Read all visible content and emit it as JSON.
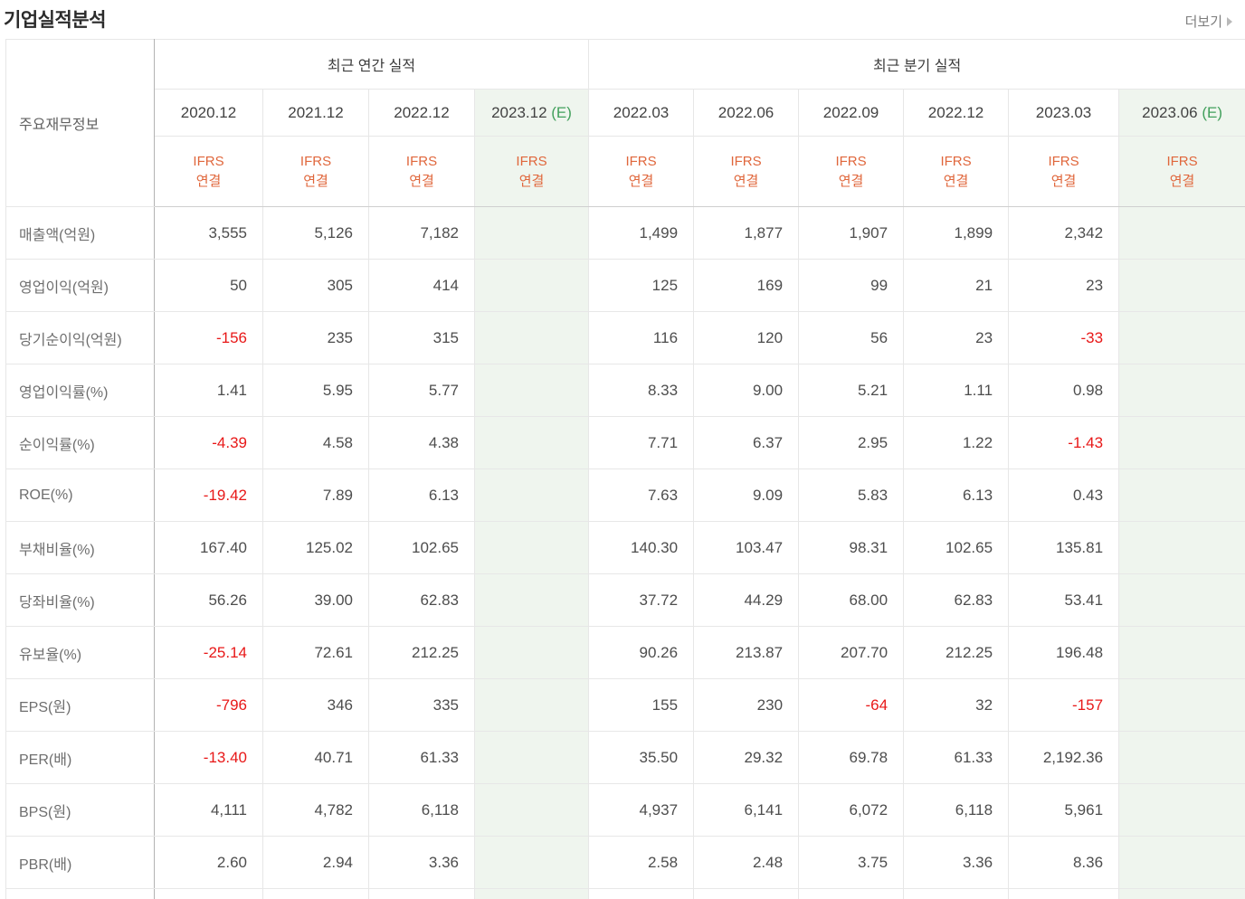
{
  "header": {
    "title": "기업실적분석",
    "more_label": "더보기"
  },
  "table": {
    "corner_label": "주요재무정보",
    "groups": [
      {
        "label": "최근 연간 실적",
        "span": 4
      },
      {
        "label": "최근 분기 실적",
        "span": 6
      }
    ],
    "estimate_suffix": "(E)",
    "ifrs_line1": "IFRS",
    "ifrs_line2": "연결",
    "columns": [
      {
        "period": "2020.12",
        "estimate": false
      },
      {
        "period": "2021.12",
        "estimate": false
      },
      {
        "period": "2022.12",
        "estimate": false
      },
      {
        "period": "2023.12",
        "estimate": true
      },
      {
        "period": "2022.03",
        "estimate": false
      },
      {
        "period": "2022.06",
        "estimate": false
      },
      {
        "period": "2022.09",
        "estimate": false
      },
      {
        "period": "2022.12",
        "estimate": false
      },
      {
        "period": "2023.03",
        "estimate": false
      },
      {
        "period": "2023.06",
        "estimate": true
      }
    ],
    "rows": [
      {
        "label": "매출액(억원)",
        "values": [
          "3,555",
          "5,126",
          "7,182",
          "",
          "1,499",
          "1,877",
          "1,907",
          "1,899",
          "2,342",
          ""
        ]
      },
      {
        "label": "영업이익(억원)",
        "values": [
          "50",
          "305",
          "414",
          "",
          "125",
          "169",
          "99",
          "21",
          "23",
          ""
        ]
      },
      {
        "label": "당기순이익(억원)",
        "values": [
          "-156",
          "235",
          "315",
          "",
          "116",
          "120",
          "56",
          "23",
          "-33",
          ""
        ]
      },
      {
        "label": "영업이익률(%)",
        "values": [
          "1.41",
          "5.95",
          "5.77",
          "",
          "8.33",
          "9.00",
          "5.21",
          "1.11",
          "0.98",
          ""
        ]
      },
      {
        "label": "순이익률(%)",
        "values": [
          "-4.39",
          "4.58",
          "4.38",
          "",
          "7.71",
          "6.37",
          "2.95",
          "1.22",
          "-1.43",
          ""
        ]
      },
      {
        "label": "ROE(%)",
        "values": [
          "-19.42",
          "7.89",
          "6.13",
          "",
          "7.63",
          "9.09",
          "5.83",
          "6.13",
          "0.43",
          ""
        ]
      },
      {
        "label": "부채비율(%)",
        "values": [
          "167.40",
          "125.02",
          "102.65",
          "",
          "140.30",
          "103.47",
          "98.31",
          "102.65",
          "135.81",
          ""
        ]
      },
      {
        "label": "당좌비율(%)",
        "values": [
          "56.26",
          "39.00",
          "62.83",
          "",
          "37.72",
          "44.29",
          "68.00",
          "62.83",
          "53.41",
          ""
        ]
      },
      {
        "label": "유보율(%)",
        "values": [
          "-25.14",
          "72.61",
          "212.25",
          "",
          "90.26",
          "213.87",
          "207.70",
          "212.25",
          "196.48",
          ""
        ]
      },
      {
        "label": "EPS(원)",
        "values": [
          "-796",
          "346",
          "335",
          "",
          "155",
          "230",
          "-64",
          "32",
          "-157",
          ""
        ]
      },
      {
        "label": "PER(배)",
        "values": [
          "-13.40",
          "40.71",
          "61.33",
          "",
          "35.50",
          "29.32",
          "69.78",
          "61.33",
          "2,192.36",
          ""
        ]
      },
      {
        "label": "BPS(원)",
        "values": [
          "4,111",
          "4,782",
          "6,118",
          "",
          "4,937",
          "6,141",
          "6,072",
          "6,118",
          "5,961",
          ""
        ]
      },
      {
        "label": "PBR(배)",
        "values": [
          "2.60",
          "2.94",
          "3.36",
          "",
          "2.58",
          "2.48",
          "3.75",
          "3.36",
          "8.36",
          ""
        ]
      }
    ]
  },
  "colors": {
    "ifrs_orange": "#e0673c",
    "estimate_green_text": "#42a05c",
    "estimate_green_bg": "#eff5ee",
    "negative_red": "#e81818",
    "label_gray": "#6e6e6e",
    "value_gray": "#4d4d4d"
  }
}
